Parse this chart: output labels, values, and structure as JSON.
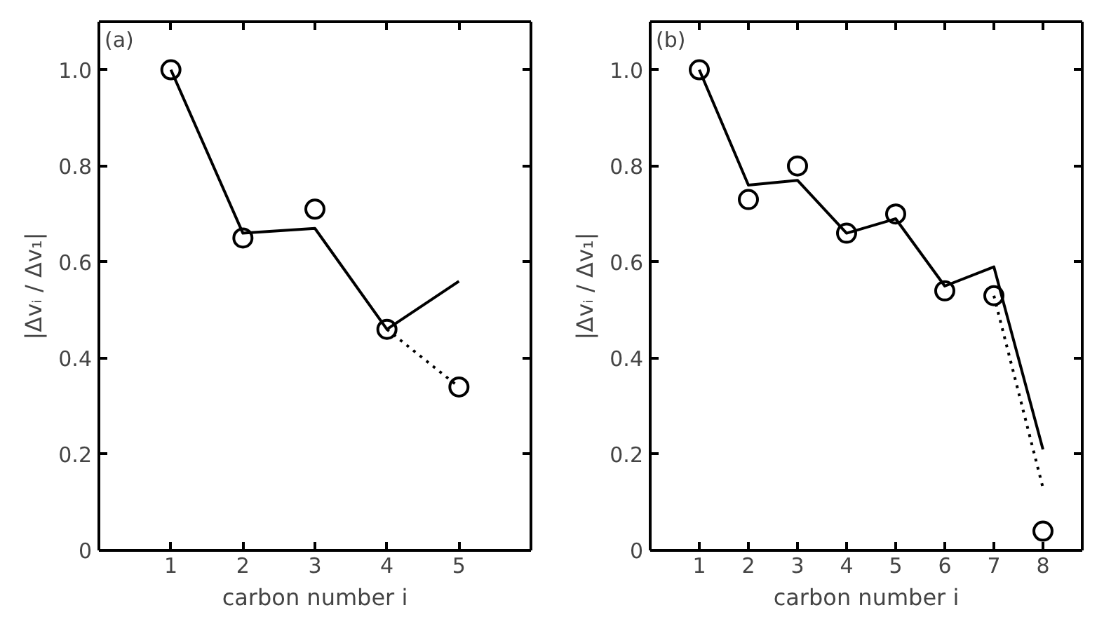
{
  "chart_data": [
    {
      "type": "scatter",
      "title": "(a)",
      "xlabel": "carbon number i",
      "ylabel": "|Δvᵢ / Δv₁|",
      "x": [
        1,
        2,
        3,
        4,
        5
      ],
      "xlim": [
        0,
        6
      ],
      "xticks": [
        1,
        2,
        3,
        4,
        5
      ],
      "ylim": [
        0,
        1.1
      ],
      "yticks": [
        0,
        0.2,
        0.4,
        0.6,
        0.8,
        {
          "value": 1,
          "label": "1.0"
        }
      ],
      "series": [
        {
          "marker": "circle",
          "color": "#000000",
          "values": [
            1.0,
            0.65,
            0.71,
            0.46,
            0.34
          ]
        },
        {
          "type": "line",
          "line_style": "solid",
          "marker": "none",
          "color": "#000000",
          "values": [
            1.0,
            0.66,
            0.67,
            0.46,
            0.56
          ]
        },
        {
          "type": "line",
          "line_style": "dotted",
          "marker": "none",
          "color": "#000000",
          "x": [
            4,
            5
          ],
          "values": [
            0.46,
            0.34
          ]
        }
      ]
    },
    {
      "type": "scatter",
      "title": "(b)",
      "xlabel": "carbon number i",
      "ylabel": "|Δvᵢ / Δv₁|",
      "x": [
        1,
        2,
        3,
        4,
        5,
        6,
        7,
        8
      ],
      "xlim": [
        0,
        8.8
      ],
      "xticks": [
        1,
        2,
        3,
        4,
        5,
        6,
        7,
        8
      ],
      "ylim": [
        0,
        1.1
      ],
      "yticks": [
        0,
        0.2,
        0.4,
        0.6,
        0.8,
        {
          "value": 1,
          "label": "1.0"
        }
      ],
      "series": [
        {
          "marker": "circle",
          "color": "#000000",
          "values": [
            1.0,
            0.73,
            0.8,
            0.66,
            0.7,
            0.54,
            0.53,
            0.04
          ]
        },
        {
          "type": "line",
          "line_style": "solid",
          "marker": "none",
          "color": "#000000",
          "values": [
            1.0,
            0.76,
            0.77,
            0.66,
            0.69,
            0.55,
            0.59,
            0.21
          ]
        },
        {
          "type": "line",
          "line_style": "dotted",
          "marker": "none",
          "color": "#000000",
          "x": [
            7,
            8
          ],
          "values": [
            0.53,
            0.13
          ]
        }
      ]
    }
  ]
}
